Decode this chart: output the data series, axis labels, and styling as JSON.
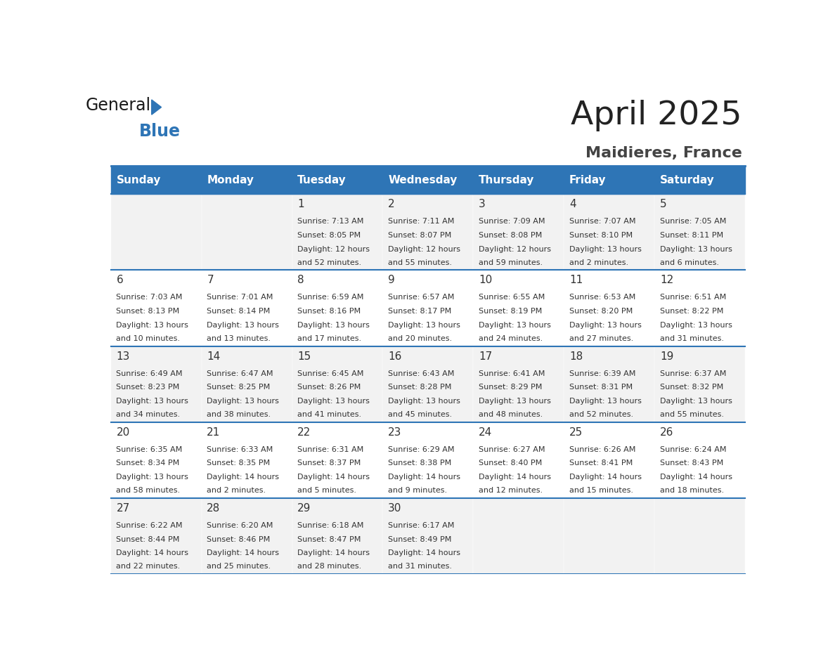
{
  "title": "April 2025",
  "subtitle": "Maidieres, France",
  "header_bg_color": "#2E75B6",
  "header_text_color": "#FFFFFF",
  "cell_bg_even": "#F2F2F2",
  "cell_bg_odd": "#FFFFFF",
  "grid_line_color": "#2E75B6",
  "day_number_color": "#333333",
  "cell_text_color": "#333333",
  "title_color": "#222222",
  "subtitle_color": "#444444",
  "days_of_week": [
    "Sunday",
    "Monday",
    "Tuesday",
    "Wednesday",
    "Thursday",
    "Friday",
    "Saturday"
  ],
  "weeks": [
    [
      {
        "day": "",
        "sunrise": "",
        "sunset": "",
        "daylight": ""
      },
      {
        "day": "",
        "sunrise": "",
        "sunset": "",
        "daylight": ""
      },
      {
        "day": "1",
        "sunrise": "Sunrise: 7:13 AM",
        "sunset": "Sunset: 8:05 PM",
        "daylight": "Daylight: 12 hours\nand 52 minutes."
      },
      {
        "day": "2",
        "sunrise": "Sunrise: 7:11 AM",
        "sunset": "Sunset: 8:07 PM",
        "daylight": "Daylight: 12 hours\nand 55 minutes."
      },
      {
        "day": "3",
        "sunrise": "Sunrise: 7:09 AM",
        "sunset": "Sunset: 8:08 PM",
        "daylight": "Daylight: 12 hours\nand 59 minutes."
      },
      {
        "day": "4",
        "sunrise": "Sunrise: 7:07 AM",
        "sunset": "Sunset: 8:10 PM",
        "daylight": "Daylight: 13 hours\nand 2 minutes."
      },
      {
        "day": "5",
        "sunrise": "Sunrise: 7:05 AM",
        "sunset": "Sunset: 8:11 PM",
        "daylight": "Daylight: 13 hours\nand 6 minutes."
      }
    ],
    [
      {
        "day": "6",
        "sunrise": "Sunrise: 7:03 AM",
        "sunset": "Sunset: 8:13 PM",
        "daylight": "Daylight: 13 hours\nand 10 minutes."
      },
      {
        "day": "7",
        "sunrise": "Sunrise: 7:01 AM",
        "sunset": "Sunset: 8:14 PM",
        "daylight": "Daylight: 13 hours\nand 13 minutes."
      },
      {
        "day": "8",
        "sunrise": "Sunrise: 6:59 AM",
        "sunset": "Sunset: 8:16 PM",
        "daylight": "Daylight: 13 hours\nand 17 minutes."
      },
      {
        "day": "9",
        "sunrise": "Sunrise: 6:57 AM",
        "sunset": "Sunset: 8:17 PM",
        "daylight": "Daylight: 13 hours\nand 20 minutes."
      },
      {
        "day": "10",
        "sunrise": "Sunrise: 6:55 AM",
        "sunset": "Sunset: 8:19 PM",
        "daylight": "Daylight: 13 hours\nand 24 minutes."
      },
      {
        "day": "11",
        "sunrise": "Sunrise: 6:53 AM",
        "sunset": "Sunset: 8:20 PM",
        "daylight": "Daylight: 13 hours\nand 27 minutes."
      },
      {
        "day": "12",
        "sunrise": "Sunrise: 6:51 AM",
        "sunset": "Sunset: 8:22 PM",
        "daylight": "Daylight: 13 hours\nand 31 minutes."
      }
    ],
    [
      {
        "day": "13",
        "sunrise": "Sunrise: 6:49 AM",
        "sunset": "Sunset: 8:23 PM",
        "daylight": "Daylight: 13 hours\nand 34 minutes."
      },
      {
        "day": "14",
        "sunrise": "Sunrise: 6:47 AM",
        "sunset": "Sunset: 8:25 PM",
        "daylight": "Daylight: 13 hours\nand 38 minutes."
      },
      {
        "day": "15",
        "sunrise": "Sunrise: 6:45 AM",
        "sunset": "Sunset: 8:26 PM",
        "daylight": "Daylight: 13 hours\nand 41 minutes."
      },
      {
        "day": "16",
        "sunrise": "Sunrise: 6:43 AM",
        "sunset": "Sunset: 8:28 PM",
        "daylight": "Daylight: 13 hours\nand 45 minutes."
      },
      {
        "day": "17",
        "sunrise": "Sunrise: 6:41 AM",
        "sunset": "Sunset: 8:29 PM",
        "daylight": "Daylight: 13 hours\nand 48 minutes."
      },
      {
        "day": "18",
        "sunrise": "Sunrise: 6:39 AM",
        "sunset": "Sunset: 8:31 PM",
        "daylight": "Daylight: 13 hours\nand 52 minutes."
      },
      {
        "day": "19",
        "sunrise": "Sunrise: 6:37 AM",
        "sunset": "Sunset: 8:32 PM",
        "daylight": "Daylight: 13 hours\nand 55 minutes."
      }
    ],
    [
      {
        "day": "20",
        "sunrise": "Sunrise: 6:35 AM",
        "sunset": "Sunset: 8:34 PM",
        "daylight": "Daylight: 13 hours\nand 58 minutes."
      },
      {
        "day": "21",
        "sunrise": "Sunrise: 6:33 AM",
        "sunset": "Sunset: 8:35 PM",
        "daylight": "Daylight: 14 hours\nand 2 minutes."
      },
      {
        "day": "22",
        "sunrise": "Sunrise: 6:31 AM",
        "sunset": "Sunset: 8:37 PM",
        "daylight": "Daylight: 14 hours\nand 5 minutes."
      },
      {
        "day": "23",
        "sunrise": "Sunrise: 6:29 AM",
        "sunset": "Sunset: 8:38 PM",
        "daylight": "Daylight: 14 hours\nand 9 minutes."
      },
      {
        "day": "24",
        "sunrise": "Sunrise: 6:27 AM",
        "sunset": "Sunset: 8:40 PM",
        "daylight": "Daylight: 14 hours\nand 12 minutes."
      },
      {
        "day": "25",
        "sunrise": "Sunrise: 6:26 AM",
        "sunset": "Sunset: 8:41 PM",
        "daylight": "Daylight: 14 hours\nand 15 minutes."
      },
      {
        "day": "26",
        "sunrise": "Sunrise: 6:24 AM",
        "sunset": "Sunset: 8:43 PM",
        "daylight": "Daylight: 14 hours\nand 18 minutes."
      }
    ],
    [
      {
        "day": "27",
        "sunrise": "Sunrise: 6:22 AM",
        "sunset": "Sunset: 8:44 PM",
        "daylight": "Daylight: 14 hours\nand 22 minutes."
      },
      {
        "day": "28",
        "sunrise": "Sunrise: 6:20 AM",
        "sunset": "Sunset: 8:46 PM",
        "daylight": "Daylight: 14 hours\nand 25 minutes."
      },
      {
        "day": "29",
        "sunrise": "Sunrise: 6:18 AM",
        "sunset": "Sunset: 8:47 PM",
        "daylight": "Daylight: 14 hours\nand 28 minutes."
      },
      {
        "day": "30",
        "sunrise": "Sunrise: 6:17 AM",
        "sunset": "Sunset: 8:49 PM",
        "daylight": "Daylight: 14 hours\nand 31 minutes."
      },
      {
        "day": "",
        "sunrise": "",
        "sunset": "",
        "daylight": ""
      },
      {
        "day": "",
        "sunrise": "",
        "sunset": "",
        "daylight": ""
      },
      {
        "day": "",
        "sunrise": "",
        "sunset": "",
        "daylight": ""
      }
    ]
  ]
}
